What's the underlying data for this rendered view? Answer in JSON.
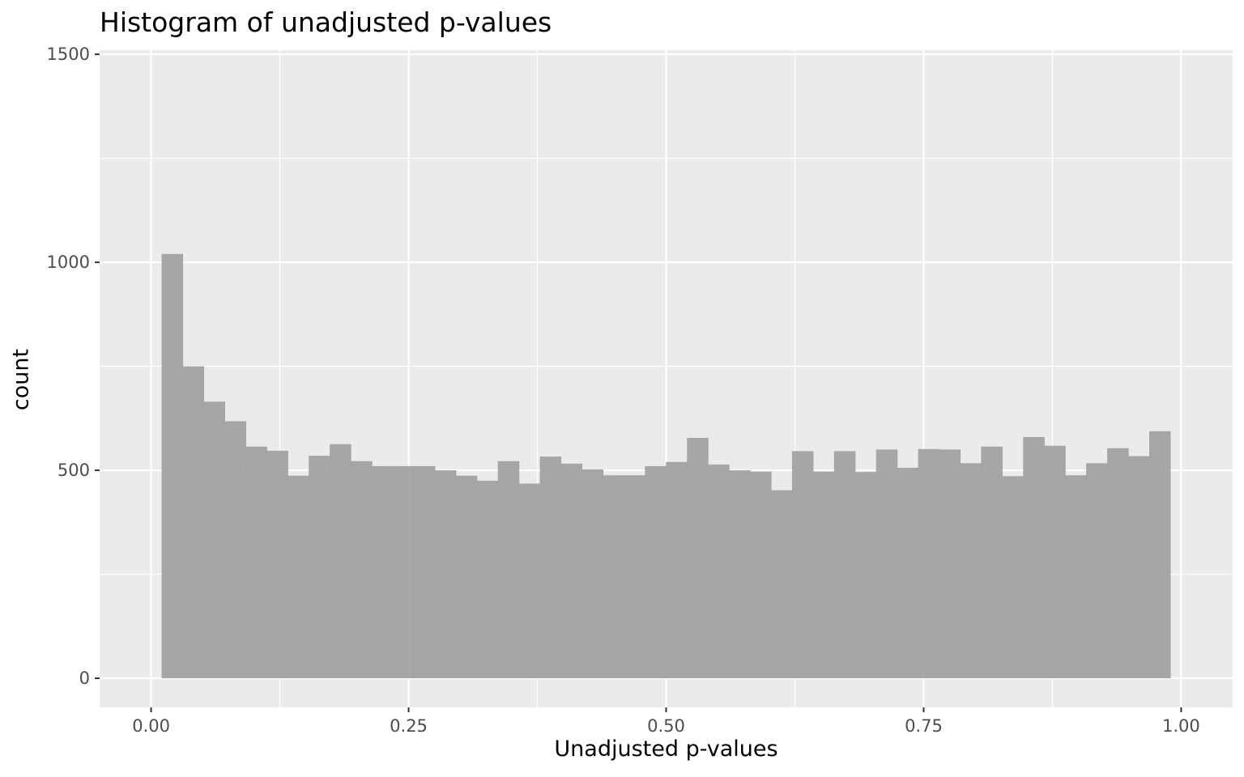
{
  "chart_data": {
    "type": "bar",
    "title": "Histogram of unadjusted p-values",
    "xlabel": "Unadjusted p-values",
    "ylabel": "count",
    "xlim": [
      -0.05,
      1.05
    ],
    "ylim": [
      -70,
      1510
    ],
    "x_ticks": [
      0.0,
      0.25,
      0.5,
      0.75,
      1.0
    ],
    "x_tick_labels": [
      "0.00",
      "0.25",
      "0.50",
      "0.75",
      "1.00"
    ],
    "y_ticks": [
      0,
      500,
      1000,
      1500
    ],
    "y_tick_labels": [
      "0",
      "500",
      "1000",
      "1500"
    ],
    "bin_start": 0.0102,
    "bin_width": 0.0204,
    "values": [
      1020,
      750,
      665,
      618,
      557,
      547,
      487,
      535,
      563,
      522,
      510,
      510,
      510,
      500,
      487,
      475,
      522,
      468,
      533,
      516,
      502,
      488,
      488,
      510,
      520,
      578,
      514,
      500,
      497,
      452,
      546,
      497,
      546,
      496,
      550,
      506,
      551,
      550,
      517,
      557,
      486,
      580,
      559,
      488,
      517,
      553,
      534,
      594
    ],
    "bar_color": "#a0a0a0",
    "panel_color": "#ebebeb",
    "grid_color": "#ffffff",
    "grid": true
  }
}
